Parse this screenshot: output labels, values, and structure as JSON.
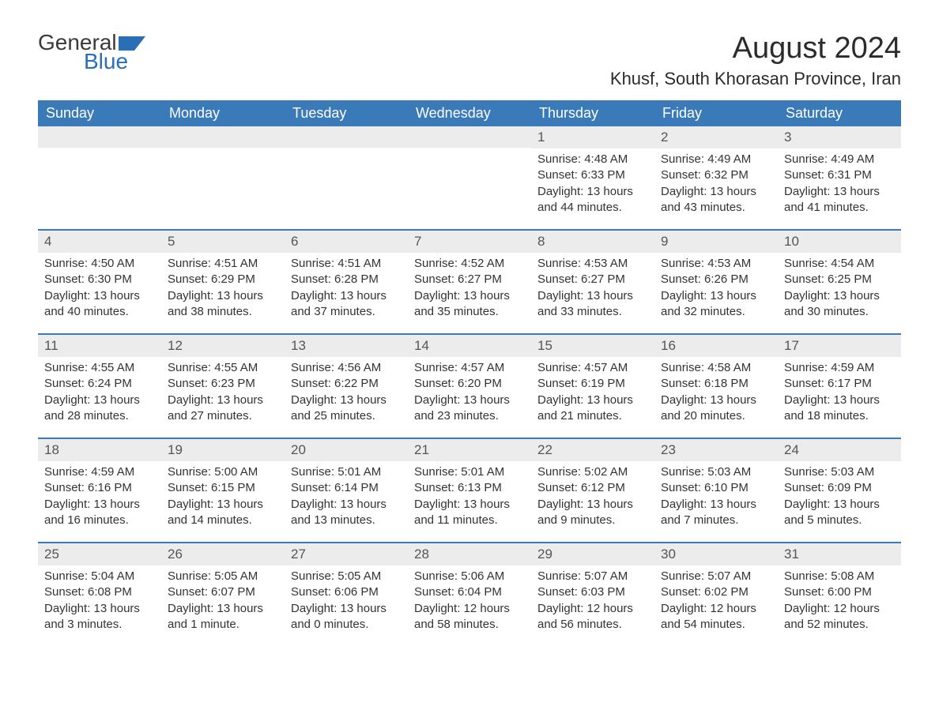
{
  "logo": {
    "text1": "General",
    "text2": "Blue",
    "flag_color": "#2a6fb5"
  },
  "title": "August 2024",
  "location": "Khusf, South Khorasan Province, Iran",
  "colors": {
    "header_bg": "#3a7ab8",
    "header_text": "#ffffff",
    "band_bg": "#ececec",
    "divider": "#3a7ab8",
    "body_text": "#333333"
  },
  "days_of_week": [
    "Sunday",
    "Monday",
    "Tuesday",
    "Wednesday",
    "Thursday",
    "Friday",
    "Saturday"
  ],
  "weeks": [
    [
      {
        "n": "",
        "sunrise": "",
        "sunset": "",
        "daylight": ""
      },
      {
        "n": "",
        "sunrise": "",
        "sunset": "",
        "daylight": ""
      },
      {
        "n": "",
        "sunrise": "",
        "sunset": "",
        "daylight": ""
      },
      {
        "n": "",
        "sunrise": "",
        "sunset": "",
        "daylight": ""
      },
      {
        "n": "1",
        "sunrise": "Sunrise: 4:48 AM",
        "sunset": "Sunset: 6:33 PM",
        "daylight": "Daylight: 13 hours and 44 minutes."
      },
      {
        "n": "2",
        "sunrise": "Sunrise: 4:49 AM",
        "sunset": "Sunset: 6:32 PM",
        "daylight": "Daylight: 13 hours and 43 minutes."
      },
      {
        "n": "3",
        "sunrise": "Sunrise: 4:49 AM",
        "sunset": "Sunset: 6:31 PM",
        "daylight": "Daylight: 13 hours and 41 minutes."
      }
    ],
    [
      {
        "n": "4",
        "sunrise": "Sunrise: 4:50 AM",
        "sunset": "Sunset: 6:30 PM",
        "daylight": "Daylight: 13 hours and 40 minutes."
      },
      {
        "n": "5",
        "sunrise": "Sunrise: 4:51 AM",
        "sunset": "Sunset: 6:29 PM",
        "daylight": "Daylight: 13 hours and 38 minutes."
      },
      {
        "n": "6",
        "sunrise": "Sunrise: 4:51 AM",
        "sunset": "Sunset: 6:28 PM",
        "daylight": "Daylight: 13 hours and 37 minutes."
      },
      {
        "n": "7",
        "sunrise": "Sunrise: 4:52 AM",
        "sunset": "Sunset: 6:27 PM",
        "daylight": "Daylight: 13 hours and 35 minutes."
      },
      {
        "n": "8",
        "sunrise": "Sunrise: 4:53 AM",
        "sunset": "Sunset: 6:27 PM",
        "daylight": "Daylight: 13 hours and 33 minutes."
      },
      {
        "n": "9",
        "sunrise": "Sunrise: 4:53 AM",
        "sunset": "Sunset: 6:26 PM",
        "daylight": "Daylight: 13 hours and 32 minutes."
      },
      {
        "n": "10",
        "sunrise": "Sunrise: 4:54 AM",
        "sunset": "Sunset: 6:25 PM",
        "daylight": "Daylight: 13 hours and 30 minutes."
      }
    ],
    [
      {
        "n": "11",
        "sunrise": "Sunrise: 4:55 AM",
        "sunset": "Sunset: 6:24 PM",
        "daylight": "Daylight: 13 hours and 28 minutes."
      },
      {
        "n": "12",
        "sunrise": "Sunrise: 4:55 AM",
        "sunset": "Sunset: 6:23 PM",
        "daylight": "Daylight: 13 hours and 27 minutes."
      },
      {
        "n": "13",
        "sunrise": "Sunrise: 4:56 AM",
        "sunset": "Sunset: 6:22 PM",
        "daylight": "Daylight: 13 hours and 25 minutes."
      },
      {
        "n": "14",
        "sunrise": "Sunrise: 4:57 AM",
        "sunset": "Sunset: 6:20 PM",
        "daylight": "Daylight: 13 hours and 23 minutes."
      },
      {
        "n": "15",
        "sunrise": "Sunrise: 4:57 AM",
        "sunset": "Sunset: 6:19 PM",
        "daylight": "Daylight: 13 hours and 21 minutes."
      },
      {
        "n": "16",
        "sunrise": "Sunrise: 4:58 AM",
        "sunset": "Sunset: 6:18 PM",
        "daylight": "Daylight: 13 hours and 20 minutes."
      },
      {
        "n": "17",
        "sunrise": "Sunrise: 4:59 AM",
        "sunset": "Sunset: 6:17 PM",
        "daylight": "Daylight: 13 hours and 18 minutes."
      }
    ],
    [
      {
        "n": "18",
        "sunrise": "Sunrise: 4:59 AM",
        "sunset": "Sunset: 6:16 PM",
        "daylight": "Daylight: 13 hours and 16 minutes."
      },
      {
        "n": "19",
        "sunrise": "Sunrise: 5:00 AM",
        "sunset": "Sunset: 6:15 PM",
        "daylight": "Daylight: 13 hours and 14 minutes."
      },
      {
        "n": "20",
        "sunrise": "Sunrise: 5:01 AM",
        "sunset": "Sunset: 6:14 PM",
        "daylight": "Daylight: 13 hours and 13 minutes."
      },
      {
        "n": "21",
        "sunrise": "Sunrise: 5:01 AM",
        "sunset": "Sunset: 6:13 PM",
        "daylight": "Daylight: 13 hours and 11 minutes."
      },
      {
        "n": "22",
        "sunrise": "Sunrise: 5:02 AM",
        "sunset": "Sunset: 6:12 PM",
        "daylight": "Daylight: 13 hours and 9 minutes."
      },
      {
        "n": "23",
        "sunrise": "Sunrise: 5:03 AM",
        "sunset": "Sunset: 6:10 PM",
        "daylight": "Daylight: 13 hours and 7 minutes."
      },
      {
        "n": "24",
        "sunrise": "Sunrise: 5:03 AM",
        "sunset": "Sunset: 6:09 PM",
        "daylight": "Daylight: 13 hours and 5 minutes."
      }
    ],
    [
      {
        "n": "25",
        "sunrise": "Sunrise: 5:04 AM",
        "sunset": "Sunset: 6:08 PM",
        "daylight": "Daylight: 13 hours and 3 minutes."
      },
      {
        "n": "26",
        "sunrise": "Sunrise: 5:05 AM",
        "sunset": "Sunset: 6:07 PM",
        "daylight": "Daylight: 13 hours and 1 minute."
      },
      {
        "n": "27",
        "sunrise": "Sunrise: 5:05 AM",
        "sunset": "Sunset: 6:06 PM",
        "daylight": "Daylight: 13 hours and 0 minutes."
      },
      {
        "n": "28",
        "sunrise": "Sunrise: 5:06 AM",
        "sunset": "Sunset: 6:04 PM",
        "daylight": "Daylight: 12 hours and 58 minutes."
      },
      {
        "n": "29",
        "sunrise": "Sunrise: 5:07 AM",
        "sunset": "Sunset: 6:03 PM",
        "daylight": "Daylight: 12 hours and 56 minutes."
      },
      {
        "n": "30",
        "sunrise": "Sunrise: 5:07 AM",
        "sunset": "Sunset: 6:02 PM",
        "daylight": "Daylight: 12 hours and 54 minutes."
      },
      {
        "n": "31",
        "sunrise": "Sunrise: 5:08 AM",
        "sunset": "Sunset: 6:00 PM",
        "daylight": "Daylight: 12 hours and 52 minutes."
      }
    ]
  ]
}
